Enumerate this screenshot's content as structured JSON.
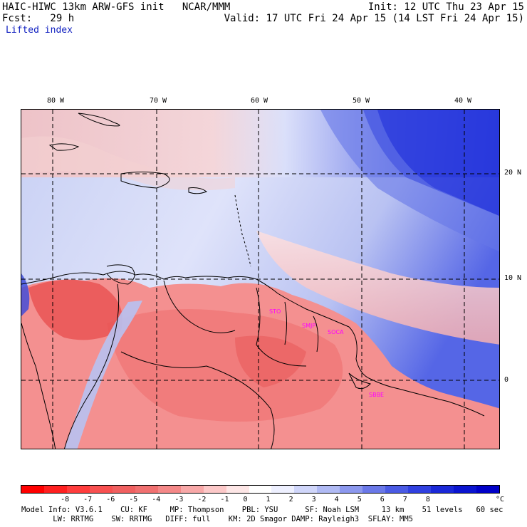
{
  "header": {
    "line1_left": "HAIC-HIWC 13km ARW-GFS init   NCAR/MMM",
    "line1_right": "Init: 12 UTC Thu 23 Apr 15",
    "line2_left": "Fcst:   29 h",
    "line2_right": "Valid: 17 UTC Fri 24 Apr 15 (14 LST Fri 24 Apr 15)",
    "field_name": "Lifted index"
  },
  "map": {
    "lon_labels": [
      "80 W",
      "70 W",
      "60 W",
      "50 W",
      "40 W"
    ],
    "lat_labels": [
      "20 N",
      "10 N",
      "0"
    ],
    "station_labels": [
      "STO",
      "SMJP",
      "SOCA",
      "SBBE"
    ],
    "station_color": "#ff00ff",
    "colors": {
      "negative": "#f06060",
      "positive": "#3050e0",
      "neutral": "#ffffff"
    }
  },
  "colorbar": {
    "labels": [
      "-8",
      "-7",
      "-6",
      "-5",
      "-4",
      "-3",
      "-2",
      "-1",
      "0",
      "1",
      "2",
      "3",
      "4",
      "5",
      "6",
      "7",
      "8"
    ],
    "unit": "°C",
    "colors": [
      "#ff0000",
      "#ff2020",
      "#ff3d3d",
      "#f85050",
      "#f06060",
      "#f07070",
      "#f48888",
      "#f8a8a8",
      "#fcc8c8",
      "#fde6e6",
      "#ffffff",
      "#eef0ff",
      "#d0d6fa",
      "#b0baf4",
      "#8c98ee",
      "#6a78e8",
      "#4a5ae4",
      "#3040e0",
      "#1a28d8",
      "#0a14d0",
      "#0000c8"
    ]
  },
  "footer": {
    "line1": "Model Info: V3.6.1    CU: KF     MP: Thompson    PBL: YSU      SF: Noah LSM     13 km    51 levels   60 sec",
    "line2": "       LW: RRTMG    SW: RRTMG   DIFF: full    KM: 2D Smagor DAMP: Rayleigh3  SFLAY: MM5"
  }
}
